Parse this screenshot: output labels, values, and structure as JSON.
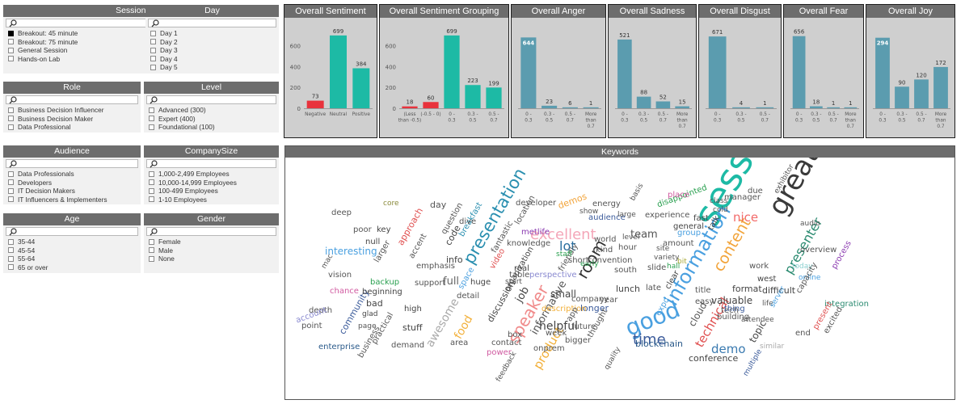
{
  "slicers": {
    "session_type": {
      "title": "Session Type",
      "items": [
        {
          "label": "Breakout: 45 minute",
          "checked": true
        },
        {
          "label": "Breakout: 75 minute",
          "checked": false
        },
        {
          "label": "General Session",
          "checked": false
        },
        {
          "label": "Hands-on Lab",
          "checked": false
        }
      ]
    },
    "day": {
      "title": "Day",
      "items": [
        {
          "label": "Day 1"
        },
        {
          "label": "Day 2"
        },
        {
          "label": "Day 3"
        },
        {
          "label": "Day 4"
        },
        {
          "label": "Day 5"
        }
      ]
    },
    "role": {
      "title": "Role",
      "items": [
        {
          "label": "Business Decision Influencer"
        },
        {
          "label": "Business Decision Maker"
        },
        {
          "label": "Data Professional"
        }
      ]
    },
    "level": {
      "title": "Level",
      "items": [
        {
          "label": "Advanced (300)"
        },
        {
          "label": "Expert (400)"
        },
        {
          "label": "Foundational (100)"
        }
      ]
    },
    "audience": {
      "title": "Audience",
      "items": [
        {
          "label": "Data Professionals"
        },
        {
          "label": "Developers"
        },
        {
          "label": "IT Decision Makers"
        },
        {
          "label": "IT Influencers & Implementers"
        }
      ]
    },
    "company_size": {
      "title": "CompanySize",
      "items": [
        {
          "label": "1,000-2,499 Employees"
        },
        {
          "label": "10,000-14,999 Employees"
        },
        {
          "label": "100-499 Employees"
        },
        {
          "label": "1-10 Employees"
        }
      ]
    },
    "age": {
      "title": "Age",
      "items": [
        {
          "label": "35-44"
        },
        {
          "label": "45-54"
        },
        {
          "label": "55-64"
        },
        {
          "label": "65 or over"
        }
      ]
    },
    "gender": {
      "title": "Gender",
      "items": [
        {
          "label": "Female"
        },
        {
          "label": "Male"
        },
        {
          "label": "None"
        }
      ]
    }
  },
  "colors": {
    "negative": "#e8323c",
    "neutral": "#1dbaa5",
    "positive": "#1dbaa5",
    "emotion": "#5b9caf",
    "header": "#6d6d6d",
    "panel_bg": "#cfcfcf"
  },
  "chart_data": [
    {
      "id": "overall_sentiment",
      "type": "bar",
      "title": "Overall Sentiment",
      "categories": [
        "Negative",
        "Neutral",
        "Positive"
      ],
      "values": [
        73,
        699,
        384
      ],
      "bar_colors": [
        "#e8323c",
        "#1dbaa5",
        "#1dbaa5"
      ],
      "yticks": [
        0,
        200,
        400,
        600
      ],
      "ylim": [
        0,
        760
      ]
    },
    {
      "id": "overall_sentiment_grouping",
      "type": "bar",
      "title": "Overall Sentiment Grouping",
      "categories": [
        "(Less than -0.5)",
        "(-0.5 - 0)",
        "0 - 0.3",
        "0.3 - 0.5",
        "0.5 - 0.7"
      ],
      "values": [
        18,
        60,
        699,
        223,
        199
      ],
      "bar_colors": [
        "#e8323c",
        "#e8323c",
        "#1dbaa5",
        "#1dbaa5",
        "#1dbaa5"
      ],
      "yticks": [
        0,
        200,
        400,
        600
      ],
      "ylim": [
        0,
        760
      ]
    },
    {
      "id": "overall_anger",
      "type": "bar",
      "title": "Overall Anger",
      "categories": [
        "0 - 0.3",
        "0.3 - 0.5",
        "0.5 - 0.7",
        "More than 0.7"
      ],
      "values": [
        644,
        23,
        6,
        1
      ],
      "bar_colors": [
        "#5b9caf",
        "#5b9caf",
        "#5b9caf",
        "#5b9caf"
      ],
      "yticks": [],
      "ylim": [
        0,
        720
      ]
    },
    {
      "id": "overall_sadness",
      "type": "bar",
      "title": "Overall Sadness",
      "categories": [
        "0 - 0.3",
        "0.3 - 0.5",
        "0.5 - 0.7",
        "More than 0.7"
      ],
      "values": [
        521,
        88,
        52,
        15
      ],
      "bar_colors": [
        "#5b9caf",
        "#5b9caf",
        "#5b9caf",
        "#5b9caf"
      ],
      "yticks": [],
      "ylim": [
        0,
        600
      ]
    },
    {
      "id": "overall_disgust",
      "type": "bar",
      "title": "Overall Disgust",
      "categories": [
        "0 - 0.3",
        "0.3 - 0.5",
        "0.5 - 0.7"
      ],
      "values": [
        671,
        4,
        1
      ],
      "bar_colors": [
        "#5b9caf",
        "#5b9caf",
        "#5b9caf"
      ],
      "yticks": [],
      "ylim": [
        0,
        740
      ]
    },
    {
      "id": "overall_fear",
      "type": "bar",
      "title": "Overall Fear",
      "categories": [
        "0 - 0.3",
        "0.3 - 0.5",
        "0.5 - 0.7",
        "More than 0.7"
      ],
      "values": [
        656,
        18,
        1,
        1
      ],
      "bar_colors": [
        "#5b9caf",
        "#5b9caf",
        "#5b9caf",
        "#5b9caf"
      ],
      "yticks": [],
      "ylim": [
        0,
        720
      ]
    },
    {
      "id": "overall_joy",
      "type": "bar",
      "title": "Overall Joy",
      "categories": [
        "0 - 0.3",
        "0.3 - 0.5",
        "0.5 - 0.7",
        "More than 0.7"
      ],
      "values": [
        294,
        90,
        120,
        172
      ],
      "bar_colors": [
        "#5b9caf",
        "#5b9caf",
        "#5b9caf",
        "#5b9caf"
      ],
      "yticks": [],
      "ylim": [
        0,
        330
      ]
    }
  ],
  "keywords": {
    "title": "Keywords",
    "words": [
      {
        "text": "session",
        "color": "#1dbaa5"
      },
      {
        "text": "great",
        "color": "#3a3a3a"
      },
      {
        "text": "good",
        "color": "#4aa0e0"
      },
      {
        "text": "information",
        "color": "#4aa0e0"
      },
      {
        "text": "presentation",
        "color": "#2a8fb0"
      },
      {
        "text": "excellent",
        "color": "#f4a6b8"
      },
      {
        "text": "speaker",
        "color": "#f08a8a"
      },
      {
        "text": "content",
        "color": "#f2a43a"
      },
      {
        "text": "room",
        "color": "#333333"
      },
      {
        "text": "time",
        "color": "#3a5a9a"
      },
      {
        "text": "presenter",
        "color": "#2a8a70"
      },
      {
        "text": "lot",
        "color": "#2a6fa0"
      },
      {
        "text": "nice",
        "color": "#f26a6a"
      },
      {
        "text": "demo",
        "color": "#3a7ab0"
      },
      {
        "text": "technical",
        "color": "#e05050"
      },
      {
        "text": "product",
        "color": "#f2b03a"
      },
      {
        "text": "helpful",
        "color": "#444444"
      },
      {
        "text": "informative",
        "color": "#555555"
      },
      {
        "text": "awesome",
        "color": "#aaaaaa"
      },
      {
        "text": "food",
        "color": "#f2b03a"
      },
      {
        "text": "team",
        "color": "#555555"
      },
      {
        "text": "conference",
        "color": "#444444"
      },
      {
        "text": "cloud",
        "color": "#555555"
      },
      {
        "text": "topic",
        "color": "#444444"
      },
      {
        "text": "valuable",
        "color": "#444444"
      },
      {
        "text": "small",
        "color": "#444444"
      },
      {
        "text": "job",
        "color": "#444444"
      },
      {
        "text": "full",
        "color": "#666666"
      },
      {
        "text": "interesting",
        "color": "#4aa0e0"
      },
      {
        "text": "developer",
        "color": "#555555"
      },
      {
        "text": "demos",
        "color": "#f2a43a"
      },
      {
        "text": "deep",
        "color": "#555555"
      },
      {
        "text": "core",
        "color": "#8a8a3a"
      },
      {
        "text": "day",
        "color": "#555555"
      },
      {
        "text": "code",
        "color": "#444444"
      },
      {
        "text": "breakfast",
        "color": "#2a8fb0"
      },
      {
        "text": "question",
        "color": "#555555"
      },
      {
        "text": "approach",
        "color": "#e05050"
      },
      {
        "text": "key",
        "color": "#444444"
      },
      {
        "text": "null",
        "color": "#444444"
      },
      {
        "text": "poor",
        "color": "#555555"
      },
      {
        "text": "larger",
        "color": "#555555"
      },
      {
        "text": "mac",
        "color": "#555555"
      },
      {
        "text": "knowledge",
        "color": "#555555"
      },
      {
        "text": "metlife",
        "color": "#8a3ab0"
      },
      {
        "text": "location",
        "color": "#555555"
      },
      {
        "text": "fantastic",
        "color": "#555555"
      },
      {
        "text": "video",
        "color": "#e05050"
      },
      {
        "text": "organization",
        "color": "#444444"
      },
      {
        "text": "table",
        "color": "#555555"
      },
      {
        "text": "perspective",
        "color": "#8a8ad0"
      },
      {
        "text": "friendly",
        "color": "#555555"
      },
      {
        "text": "energy",
        "color": "#555555"
      },
      {
        "text": "audience",
        "color": "#3a5a9a"
      },
      {
        "text": "large",
        "color": "#555555"
      },
      {
        "text": "experience",
        "color": "#555555"
      },
      {
        "text": "disappointed",
        "color": "#2aa050"
      },
      {
        "text": "place",
        "color": "#d05aa0"
      },
      {
        "text": "class",
        "color": "#555555"
      },
      {
        "text": "manager",
        "color": "#555555"
      },
      {
        "text": "due",
        "color": "#555555"
      },
      {
        "text": "exhibitor",
        "color": "#555555"
      },
      {
        "text": "cold",
        "color": "#555555"
      },
      {
        "text": "fast",
        "color": "#444444"
      },
      {
        "text": "general",
        "color": "#444444"
      },
      {
        "text": "talk",
        "color": "#444444"
      },
      {
        "text": "amount",
        "color": "#555555"
      },
      {
        "text": "group",
        "color": "#4aa0e0"
      },
      {
        "text": "overview",
        "color": "#555555"
      },
      {
        "text": "process",
        "color": "#8a3ab0"
      },
      {
        "text": "online",
        "color": "#4aa0e0"
      },
      {
        "text": "today",
        "color": "#8ad0d0"
      },
      {
        "text": "work",
        "color": "#555555"
      },
      {
        "text": "difficult",
        "color": "#444444"
      },
      {
        "text": "capacity",
        "color": "#555555"
      },
      {
        "text": "integration",
        "color": "#2a8a70"
      },
      {
        "text": "format",
        "color": "#444444"
      },
      {
        "text": "west",
        "color": "#444444"
      },
      {
        "text": "life",
        "color": "#555555"
      },
      {
        "text": "server",
        "color": "#4aa0e0"
      },
      {
        "text": "building",
        "color": "#555555"
      },
      {
        "text": "attendee",
        "color": "#555555"
      },
      {
        "text": "end",
        "color": "#555555"
      },
      {
        "text": "excited",
        "color": "#555555"
      },
      {
        "text": "present",
        "color": "#e05050"
      },
      {
        "text": "similar",
        "color": "#aaaaaa"
      },
      {
        "text": "multiple",
        "color": "#3a5a9a"
      },
      {
        "text": "lunch",
        "color": "#444444"
      },
      {
        "text": "late",
        "color": "#555555"
      },
      {
        "text": "clear",
        "color": "#444444"
      },
      {
        "text": "south",
        "color": "#555555"
      },
      {
        "text": "slide",
        "color": "#555555"
      },
      {
        "text": "hall",
        "color": "#2aa050"
      },
      {
        "text": "bit",
        "color": "#aaaa3a"
      },
      {
        "text": "variety",
        "color": "#555555"
      },
      {
        "text": "site",
        "color": "#555555"
      },
      {
        "text": "hour",
        "color": "#555555"
      },
      {
        "text": "world",
        "color": "#555555"
      },
      {
        "text": "kind",
        "color": "#555555"
      },
      {
        "text": "level",
        "color": "#555555"
      },
      {
        "text": "convention",
        "color": "#555555"
      },
      {
        "text": "early",
        "color": "#2aa050"
      },
      {
        "text": "staff",
        "color": "#2aa050"
      },
      {
        "text": "longer",
        "color": "#3a5a9a"
      },
      {
        "text": "year",
        "color": "#555555"
      },
      {
        "text": "company",
        "color": "#555555"
      },
      {
        "text": "description",
        "color": "#f2b03a"
      },
      {
        "text": "future",
        "color": "#555555"
      },
      {
        "text": "app",
        "color": "#555555"
      },
      {
        "text": "blockchain",
        "color": "#2a5a8a"
      },
      {
        "text": "expo",
        "color": "#4aa0e0"
      },
      {
        "text": "quality",
        "color": "#555555"
      },
      {
        "text": "thought",
        "color": "#555555"
      },
      {
        "text": "bigger",
        "color": "#555555"
      },
      {
        "text": "onprem",
        "color": "#555555"
      },
      {
        "text": "week",
        "color": "#555555"
      },
      {
        "text": "power",
        "color": "#d05aa0"
      },
      {
        "text": "contact",
        "color": "#555555"
      },
      {
        "text": "box",
        "color": "#555555"
      },
      {
        "text": "feedback",
        "color": "#555555"
      },
      {
        "text": "discussion",
        "color": "#444444"
      },
      {
        "text": "area",
        "color": "#555555"
      },
      {
        "text": "stuff",
        "color": "#444444"
      },
      {
        "text": "demand",
        "color": "#555555"
      },
      {
        "text": "high",
        "color": "#444444"
      },
      {
        "text": "enterprise",
        "color": "#2a5a8a"
      },
      {
        "text": "business",
        "color": "#555555"
      },
      {
        "text": "practical",
        "color": "#555555"
      },
      {
        "text": "community",
        "color": "#3a5a9a"
      },
      {
        "text": "page",
        "color": "#555555"
      },
      {
        "text": "glad",
        "color": "#444444"
      },
      {
        "text": "bad",
        "color": "#444444"
      },
      {
        "text": "beginning",
        "color": "#444444"
      },
      {
        "text": "backup",
        "color": "#2aa050"
      },
      {
        "text": "chance",
        "color": "#d05aa0"
      },
      {
        "text": "depth",
        "color": "#555555"
      },
      {
        "text": "account",
        "color": "#8a8ad0"
      },
      {
        "text": "point",
        "color": "#555555"
      },
      {
        "text": "vision",
        "color": "#555555"
      },
      {
        "text": "support",
        "color": "#555555"
      },
      {
        "text": "detail",
        "color": "#555555"
      },
      {
        "text": "huge",
        "color": "#444444"
      },
      {
        "text": "space",
        "color": "#4aa0e0"
      },
      {
        "text": "info",
        "color": "#444444"
      },
      {
        "text": "emphasis",
        "color": "#555555"
      },
      {
        "text": "accent",
        "color": "#555555"
      },
      {
        "text": "dive",
        "color": "#555555"
      },
      {
        "text": "start",
        "color": "#555555"
      },
      {
        "text": "real",
        "color": "#444444"
      },
      {
        "text": "short",
        "color": "#555555"
      },
      {
        "text": "basis",
        "color": "#555555"
      },
      {
        "text": "show",
        "color": "#555555"
      },
      {
        "text": "tech",
        "color": "#555555"
      },
      {
        "text": "title",
        "color": "#555555"
      },
      {
        "text": "easy",
        "color": "#555555"
      },
      {
        "text": "thing",
        "color": "#3a5a9a"
      },
      {
        "text": "audio",
        "color": "#555555"
      }
    ]
  }
}
